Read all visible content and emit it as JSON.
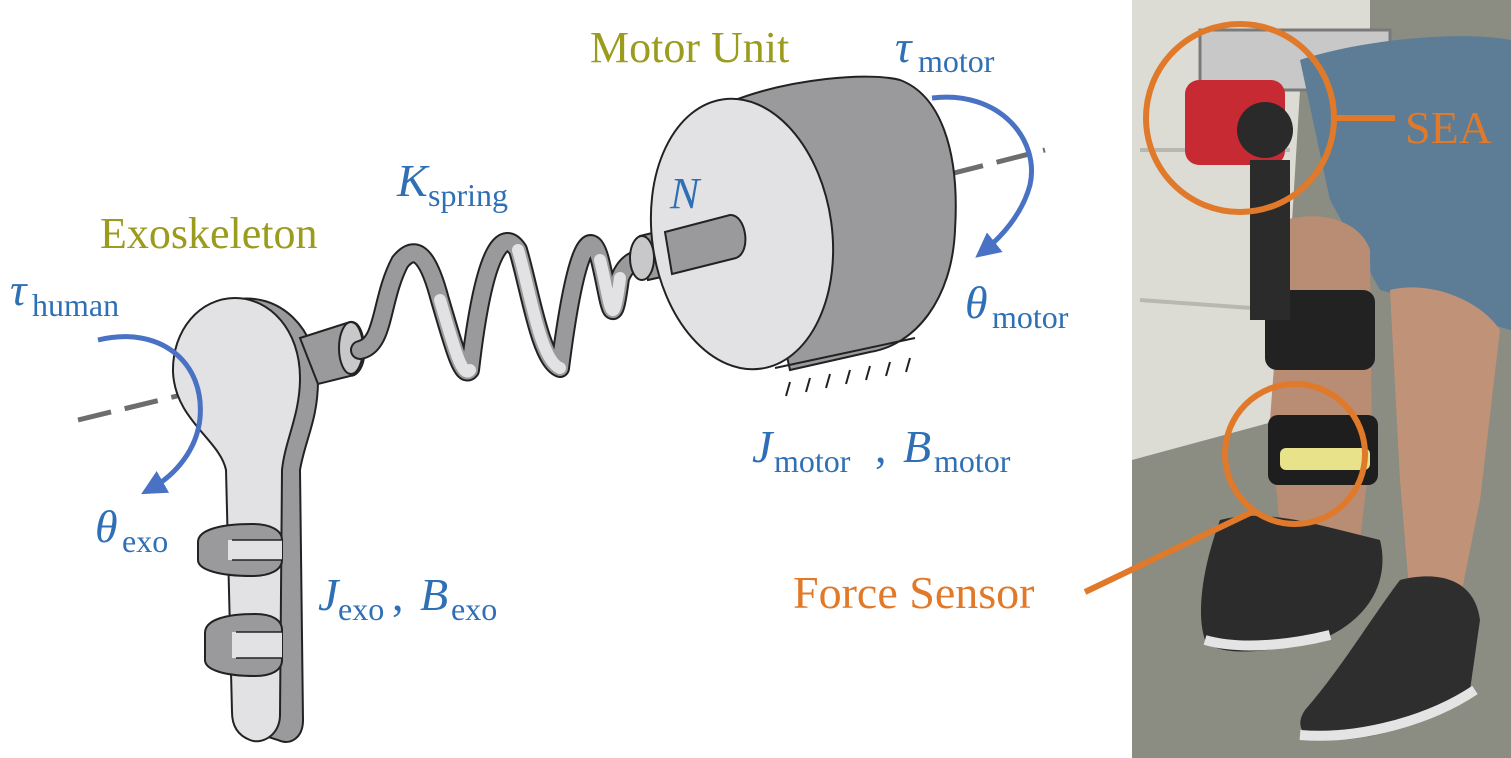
{
  "labels": {
    "motor_unit": "Motor Unit",
    "exoskeleton": "Exoskeleton",
    "tau_symbol": "τ",
    "theta_symbol": "θ",
    "k_symbol": "K",
    "j_symbol": "J",
    "b_symbol": "B",
    "n_symbol": "N",
    "sub_motor": "motor",
    "sub_human": "human",
    "sub_exo": "exo",
    "sub_spring": "spring",
    "comma": ",",
    "sea": "SEA",
    "force_sensor": "Force Sensor"
  },
  "colors": {
    "olive_label": "#9b9b1e",
    "blue_label": "#2e6fb5",
    "orange_annotation": "#e07a2a",
    "component_light": "#e2e2e4",
    "component_dark": "#9a9a9c",
    "axis_dash": "#6d6d6d"
  }
}
